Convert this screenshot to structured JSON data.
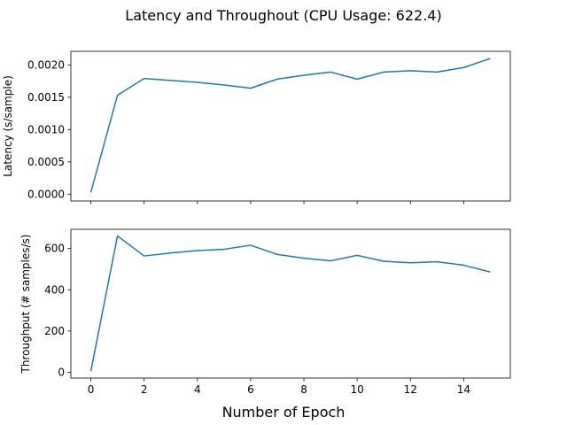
{
  "figure": {
    "title": "Latency and Throughout (CPU Usage: 622.4)",
    "xlabel": "Number of Epoch"
  },
  "colors": {
    "line": "#1f77b4",
    "axes": "#000000",
    "background": "#ffffff"
  },
  "chart_data": [
    {
      "type": "line",
      "ylabel": "Latency (s/sample)",
      "x": [
        0,
        1,
        2,
        3,
        4,
        5,
        6,
        7,
        8,
        9,
        10,
        11,
        12,
        13,
        14,
        15
      ],
      "series": [
        {
          "values": [
            3e-05,
            0.00153,
            0.00179,
            0.00176,
            0.00173,
            0.00169,
            0.00164,
            0.00178,
            0.00184,
            0.00189,
            0.00178,
            0.00189,
            0.00191,
            0.00189,
            0.00196,
            0.0021
          ]
        }
      ],
      "xlim": [
        -0.75,
        15.75
      ],
      "ylim": [
        -0.000105,
        0.00221
      ],
      "xticks": [
        0,
        2,
        4,
        6,
        8,
        10,
        12,
        14
      ],
      "yticks": [
        0.0,
        0.0005,
        0.001,
        0.0015,
        0.002
      ],
      "ytick_labels": [
        "0.0000",
        "0.0005",
        "0.0010",
        "0.0015",
        "0.0020"
      ],
      "show_xtick_labels": false,
      "grid": false
    },
    {
      "type": "line",
      "ylabel": "Throughput (# samples/s)",
      "x": [
        0,
        1,
        2,
        3,
        4,
        5,
        6,
        7,
        8,
        9,
        10,
        11,
        12,
        13,
        14,
        15
      ],
      "series": [
        {
          "values": [
            5,
            661,
            564,
            578,
            590,
            596,
            616,
            571,
            553,
            540,
            567,
            538,
            531,
            536,
            519,
            486
          ]
        }
      ],
      "xlim": [
        -0.75,
        15.75
      ],
      "ylim": [
        -28,
        693
      ],
      "xticks": [
        0,
        2,
        4,
        6,
        8,
        10,
        12,
        14
      ],
      "xtick_labels": [
        "0",
        "2",
        "4",
        "6",
        "8",
        "10",
        "12",
        "14"
      ],
      "yticks": [
        0,
        200,
        400,
        600
      ],
      "ytick_labels": [
        "0",
        "200",
        "400",
        "600"
      ],
      "show_xtick_labels": true,
      "grid": false
    }
  ]
}
